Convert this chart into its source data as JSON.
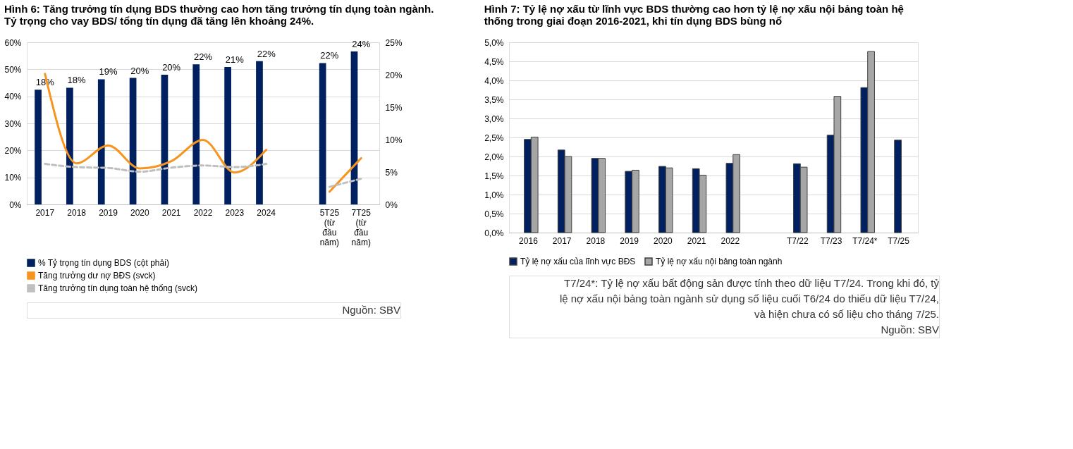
{
  "chart_data": [
    {
      "type": "bar",
      "title": "Hình 6: Tăng trưởng tín dụng BDS thường cao hơn tăng trưởng tín dụng toàn ngành. Tỷ trọng cho vay BDS/ tổng tín dụng đã tăng lên khoảng 24%.",
      "categories": [
        "2017",
        "2018",
        "2019",
        "2020",
        "2021",
        "2022",
        "2023",
        "2024",
        null,
        "5T25 (từ đầu năm)",
        "7T25 (từ đầu năm)"
      ],
      "series": [
        {
          "name": "% Tỷ trọng tín dụng BDS (cột phải)",
          "axis": "y2",
          "color": "#002060",
          "values": [
            17.7,
            18.0,
            19.3,
            19.5,
            20.0,
            21.6,
            21.2,
            22.1,
            null,
            21.8,
            23.6
          ],
          "value_labels": [
            "18%",
            "18%",
            "19%",
            "20%",
            "20%",
            "22%",
            "21%",
            "22%",
            null,
            "22%",
            "24%"
          ]
        },
        {
          "name": "Tăng trưởng dư nợ BĐS (svck)",
          "type": "line",
          "axis": "y",
          "line_style": "solid",
          "color": "#f7941d",
          "values": [
            48.3,
            15.2,
            21.8,
            13.3,
            16.0,
            23.9,
            11.8,
            20.2,
            null,
            4.7,
            17.1
          ]
        },
        {
          "name": "Tăng trưởng tín dụng toàn hệ thống (svck)",
          "type": "line",
          "axis": "y",
          "line_style": "dashed",
          "color": "#bfbfbf",
          "values": [
            15.0,
            13.8,
            13.5,
            12.1,
            13.6,
            14.4,
            13.8,
            15.0,
            null,
            6.5,
            9.5
          ]
        }
      ],
      "ylim": [
        0,
        60
      ],
      "yticks": [
        {
          "value": 0,
          "label": "0%"
        },
        {
          "value": 10,
          "label": "10%"
        },
        {
          "value": 20,
          "label": "20%"
        },
        {
          "value": 30,
          "label": "30%"
        },
        {
          "value": 40,
          "label": "40%"
        },
        {
          "value": 50,
          "label": "50%"
        },
        {
          "value": 60,
          "label": "60%"
        }
      ],
      "y2lim": [
        0,
        25
      ],
      "y2ticks": [
        {
          "value": 0,
          "label": "0%"
        },
        {
          "value": 5,
          "label": "5%"
        },
        {
          "value": 10,
          "label": "10%"
        },
        {
          "value": 15,
          "label": "15%"
        },
        {
          "value": 20,
          "label": "20%"
        },
        {
          "value": 25,
          "label": "25%"
        }
      ],
      "grid": "y",
      "legend": "bottom",
      "annotations": [
        "Nguồn: SBV"
      ]
    },
    {
      "type": "bar",
      "title": "Hình 7: Tỷ lệ nợ xấu từ lĩnh vực BDS thường cao hơn tỷ lệ nợ xấu nội bảng toàn hệ thống trong giai đoạn 2016-2021, khi tín dụng BDS bùng nổ",
      "categories": [
        "2016",
        "2017",
        "2018",
        "2019",
        "2020",
        "2021",
        "2022",
        null,
        "T7/22",
        "T7/23",
        "T7/24*",
        "T7/25"
      ],
      "series": [
        {
          "name": "Tỷ lệ nợ xấu của lĩnh vực BĐS",
          "color": "#002060",
          "values": [
            2.45,
            2.17,
            1.95,
            1.61,
            1.74,
            1.68,
            1.82,
            null,
            1.81,
            2.56,
            3.81,
            2.43
          ]
        },
        {
          "name": "Tỷ lệ nợ xấu nội bảng toàn ngành",
          "color": "#a6a6a6",
          "values": [
            2.51,
            2.0,
            1.95,
            1.64,
            1.7,
            1.51,
            2.05,
            null,
            1.72,
            3.58,
            4.76,
            null
          ]
        }
      ],
      "ylim": [
        0,
        5
      ],
      "yticks": [
        {
          "value": 0,
          "label": "0,0%"
        },
        {
          "value": 0.5,
          "label": "0,5%"
        },
        {
          "value": 1,
          "label": "1,0%"
        },
        {
          "value": 1.5,
          "label": "1,5%"
        },
        {
          "value": 2,
          "label": "2,0%"
        },
        {
          "value": 2.5,
          "label": "2,5%"
        },
        {
          "value": 3,
          "label": "3,0%"
        },
        {
          "value": 3.5,
          "label": "3,5%"
        },
        {
          "value": 4,
          "label": "4,0%"
        },
        {
          "value": 4.5,
          "label": "4,5%"
        },
        {
          "value": 5,
          "label": "5,0%"
        }
      ],
      "grid": "y",
      "legend": "bottom",
      "annotations": [
        "T7/24*: Tỷ lệ nợ xấu bất động sản được tính theo dữ liệu T7/24. Trong khi đó, tỷ lệ nợ xấu nội bảng toàn ngành sử dụng số liệu cuối T6/24 do thiếu dữ liệu T7/24, và hiện chưa có số liệu cho tháng 7/25.",
        "Nguồn: SBV"
      ]
    }
  ]
}
